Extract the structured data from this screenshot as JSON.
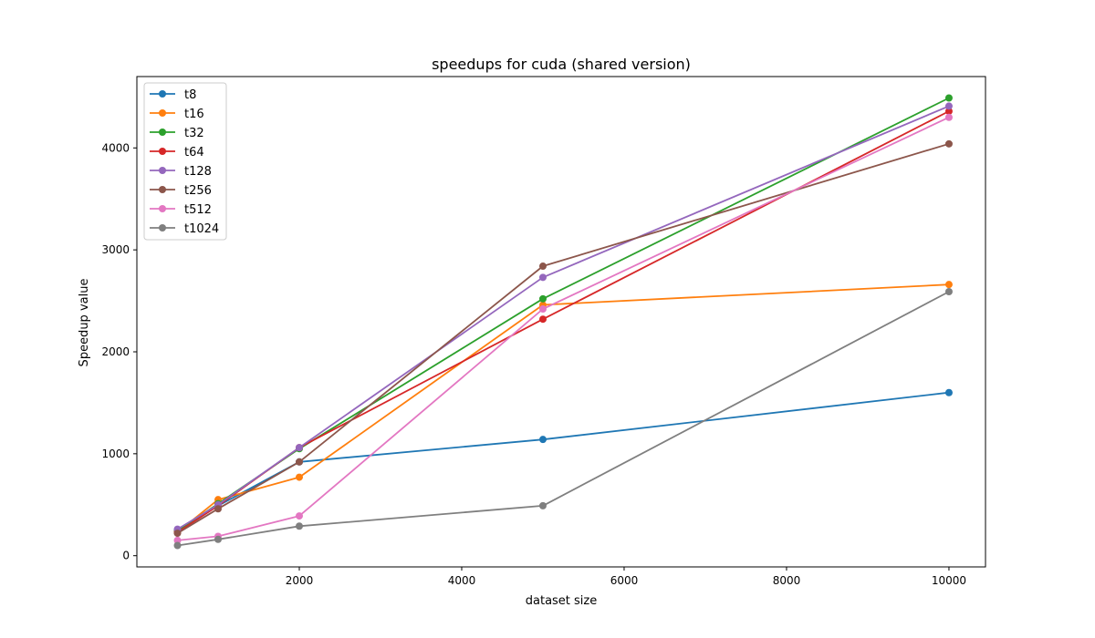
{
  "chart_data": {
    "type": "line",
    "title": "speedups for cuda (shared version)",
    "xlabel": "dataset size",
    "ylabel": "Speedup value",
    "x": [
      500,
      1000,
      2000,
      5000,
      10000
    ],
    "xlim": [
      0,
      10450
    ],
    "ylim": [
      -110,
      4700
    ],
    "xticks": [
      2000,
      4000,
      6000,
      8000,
      10000
    ],
    "yticks": [
      0,
      1000,
      2000,
      3000,
      4000
    ],
    "grid": false,
    "legend_position": "upper-left",
    "series": [
      {
        "name": "t8",
        "color": "#1f77b4",
        "values": [
          250,
          490,
          920,
          1140,
          1600
        ]
      },
      {
        "name": "t16",
        "color": "#ff7f0e",
        "values": [
          230,
          550,
          770,
          2460,
          2660
        ]
      },
      {
        "name": "t32",
        "color": "#2ca02c",
        "values": [
          240,
          510,
          1050,
          2520,
          4490
        ]
      },
      {
        "name": "t64",
        "color": "#d62728",
        "values": [
          230,
          490,
          1060,
          2320,
          4360
        ]
      },
      {
        "name": "t128",
        "color": "#9467bd",
        "values": [
          260,
          500,
          1060,
          2730,
          4410
        ]
      },
      {
        "name": "t256",
        "color": "#8c564b",
        "values": [
          220,
          460,
          920,
          2840,
          4040
        ]
      },
      {
        "name": "t512",
        "color": "#e377c2",
        "values": [
          150,
          190,
          390,
          2420,
          4300
        ]
      },
      {
        "name": "t1024",
        "color": "#7f7f7f",
        "values": [
          100,
          160,
          290,
          490,
          2590
        ]
      }
    ]
  }
}
